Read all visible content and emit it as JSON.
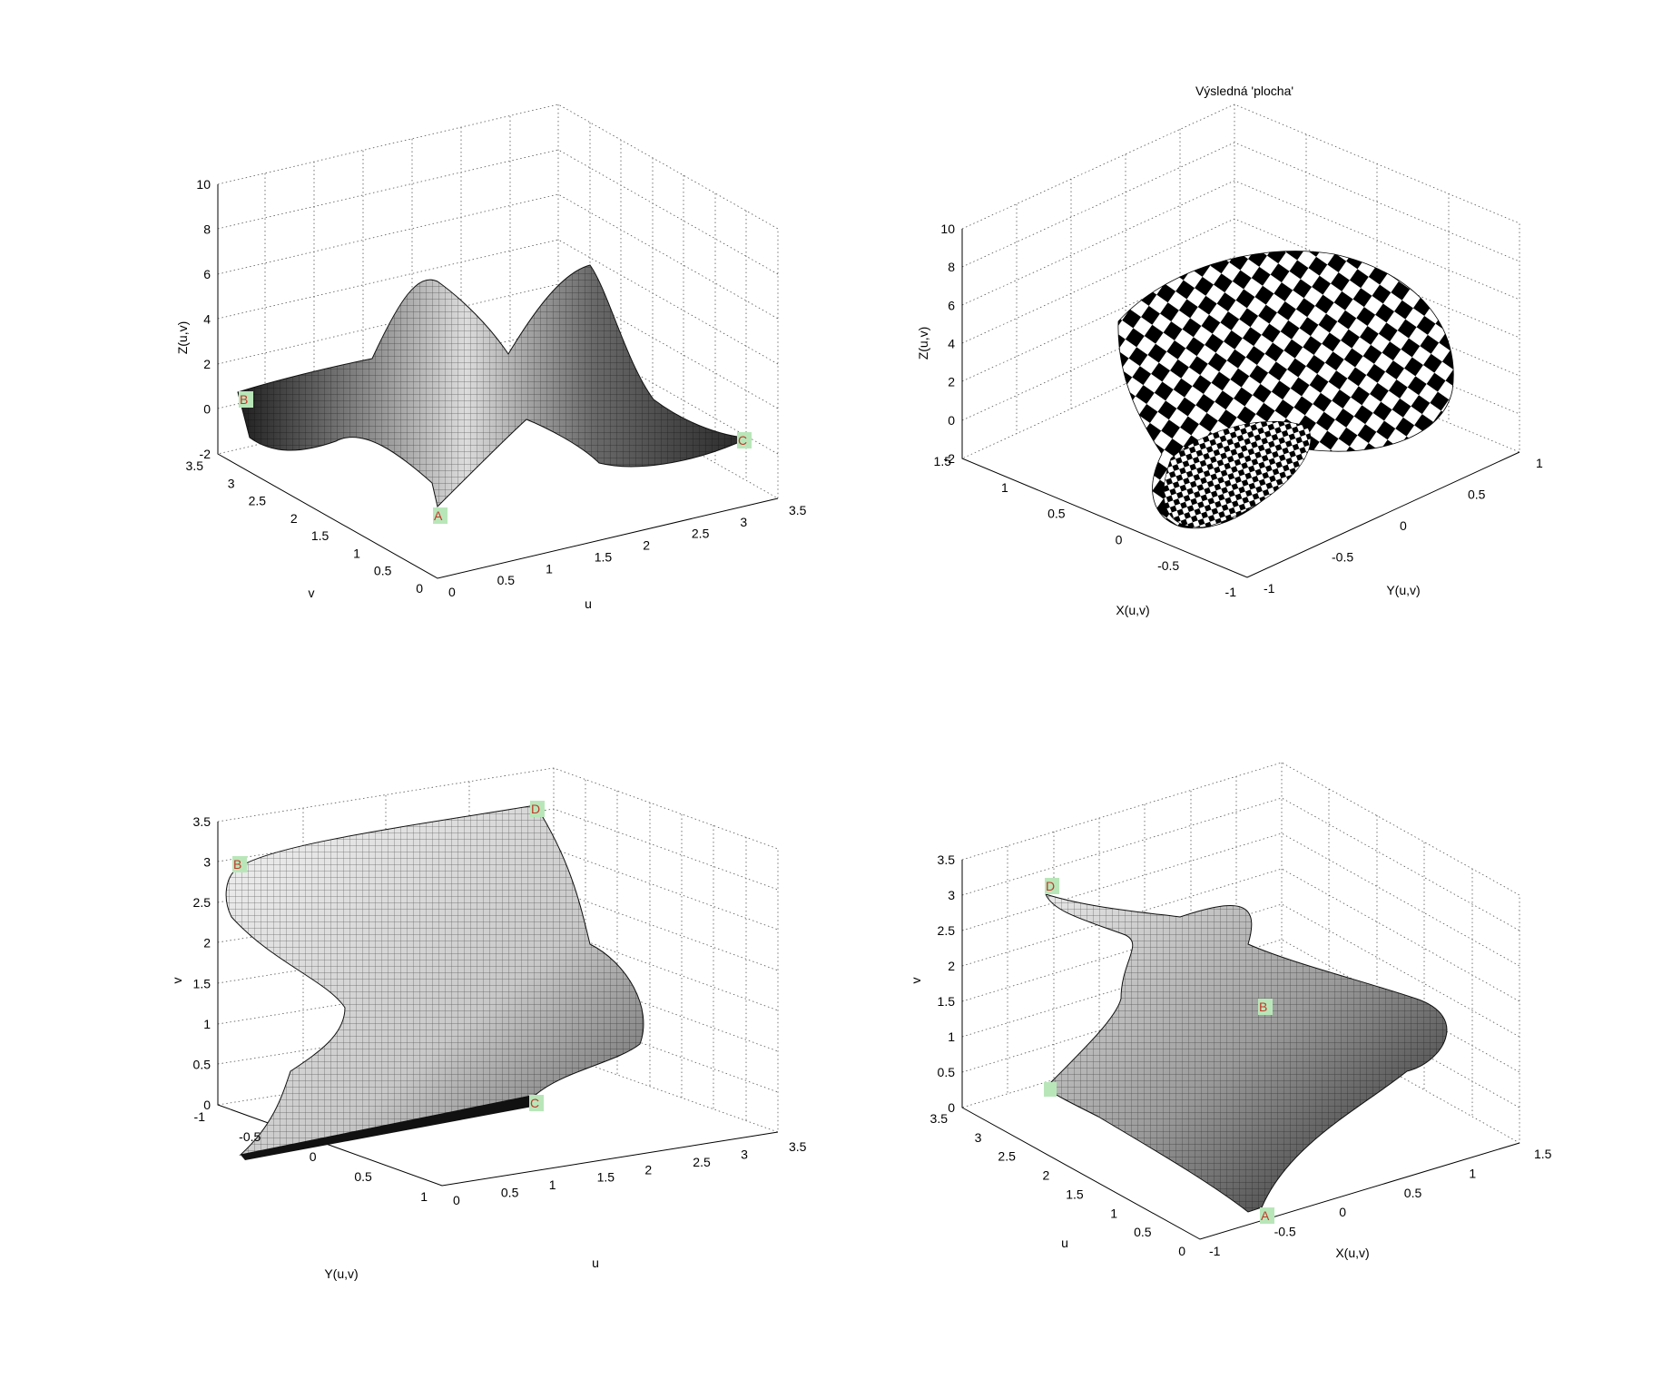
{
  "colors": {
    "marker_bg": "#b9e6b9",
    "marker_text": "#c0392b",
    "surface_dark": "#2a2a2a",
    "surface_light": "#d9d9d9"
  },
  "chart_data": [
    {
      "type": "surface",
      "title": "",
      "xlabel": "u",
      "ylabel": "v",
      "zlabel": "Z(u,v)",
      "xlim": [
        0,
        3.5
      ],
      "ylim": [
        0,
        3.5
      ],
      "zlim": [
        -2,
        10
      ],
      "xticks": [
        "0",
        "0.5",
        "1",
        "1.5",
        "2",
        "2.5",
        "3",
        "3.5"
      ],
      "yticks": [
        "0",
        "0.5",
        "1",
        "1.5",
        "2",
        "2.5",
        "3",
        "3.5"
      ],
      "zticks": [
        "-2",
        "0",
        "2",
        "4",
        "6",
        "8",
        "10"
      ],
      "markers": [
        "A",
        "B",
        "C"
      ]
    },
    {
      "type": "surface",
      "title": "Výsledná 'plocha'",
      "xlabel": "X(u,v)",
      "ylabel": "Y(u,v)",
      "zlabel": "Z(u,v)",
      "xlim": [
        -1,
        1.5
      ],
      "ylim": [
        -1,
        1
      ],
      "zlim": [
        -2,
        10
      ],
      "xticks": [
        "-1",
        "-0.5",
        "0",
        "0.5",
        "1",
        "1.5"
      ],
      "yticks": [
        "-1",
        "-0.5",
        "0",
        "0.5",
        "1"
      ],
      "zticks": [
        "-2",
        "0",
        "2",
        "4",
        "6",
        "8",
        "10"
      ],
      "texture": "checkerboard"
    },
    {
      "type": "surface",
      "title": "",
      "xlabel": "u",
      "ylabel": "Y(u,v)",
      "zlabel": "v",
      "xlim": [
        0,
        3.5
      ],
      "ylim": [
        -1,
        1
      ],
      "zlim": [
        0,
        3.5
      ],
      "xticks": [
        "0",
        "0.5",
        "1",
        "1.5",
        "2",
        "2.5",
        "3",
        "3.5"
      ],
      "yticks": [
        "-1",
        "-0.5",
        "0",
        "0.5",
        "1"
      ],
      "zticks": [
        "0",
        "0.5",
        "1",
        "1.5",
        "2",
        "2.5",
        "3",
        "3.5"
      ],
      "markers": [
        "B",
        "D",
        "C"
      ]
    },
    {
      "type": "surface",
      "title": "",
      "xlabel": "X(u,v)",
      "ylabel": "u",
      "zlabel": "v",
      "xlim": [
        -1,
        1.5
      ],
      "ylim": [
        0,
        3.5
      ],
      "zlim": [
        0,
        3.5
      ],
      "xticks": [
        "-1",
        "-0.5",
        "0",
        "0.5",
        "1",
        "1.5"
      ],
      "yticks": [
        "0",
        "0.5",
        "1",
        "1.5",
        "2",
        "2.5",
        "3",
        "3.5"
      ],
      "zticks": [
        "0",
        "0.5",
        "1",
        "1.5",
        "2",
        "2.5",
        "3",
        "3.5"
      ],
      "markers": [
        "D",
        "B",
        "A"
      ]
    }
  ]
}
